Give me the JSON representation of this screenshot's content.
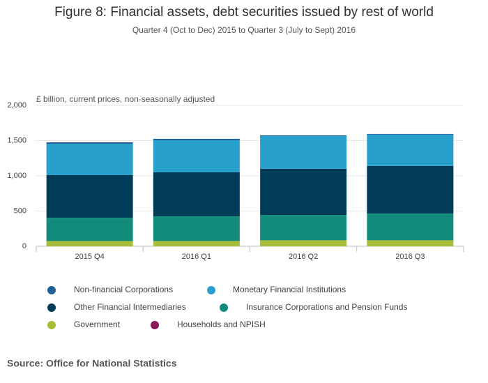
{
  "chart_data": {
    "type": "stacked_bar",
    "title": "Figure 8: Financial assets, debt securities issued by rest of world",
    "subtitle": "Quarter 4 (Oct to Dec) 2015 to Quarter 3 (July to Sept) 2016",
    "y_label": "£ billion, current prices, non-seasonally adjusted",
    "categories": [
      "2015 Q4",
      "2016 Q1",
      "2016 Q2",
      "2016 Q3"
    ],
    "series": [
      {
        "name": "Non-financial Corporations",
        "color": "#206095",
        "values": [
          20,
          20,
          10,
          10
        ]
      },
      {
        "name": "Monetary Financial Institutions",
        "color": "#27a0cc",
        "values": [
          445,
          455,
          465,
          445
        ]
      },
      {
        "name": "Other Financial Intermediaries",
        "color": "#003c57",
        "values": [
          605,
          625,
          655,
          675
        ]
      },
      {
        "name": "Insurance Corporations and Pension Funds",
        "color": "#118c7b",
        "values": [
          330,
          350,
          360,
          380
        ]
      },
      {
        "name": "Government",
        "color": "#a8bd3a",
        "values": [
          75,
          75,
          85,
          85
        ]
      },
      {
        "name": "Households and NPISH",
        "color": "#871a5b",
        "values": [
          0,
          0,
          0,
          0
        ]
      }
    ],
    "ylim": [
      0,
      2000
    ],
    "yticks": [
      0,
      500,
      {
        "value": 1000,
        "label": "1,000"
      },
      {
        "value": 1500,
        "label": "1,500"
      },
      {
        "value": 2000,
        "label": "2,000"
      }
    ],
    "grid": true,
    "source": "Source: Office for National Statistics"
  }
}
